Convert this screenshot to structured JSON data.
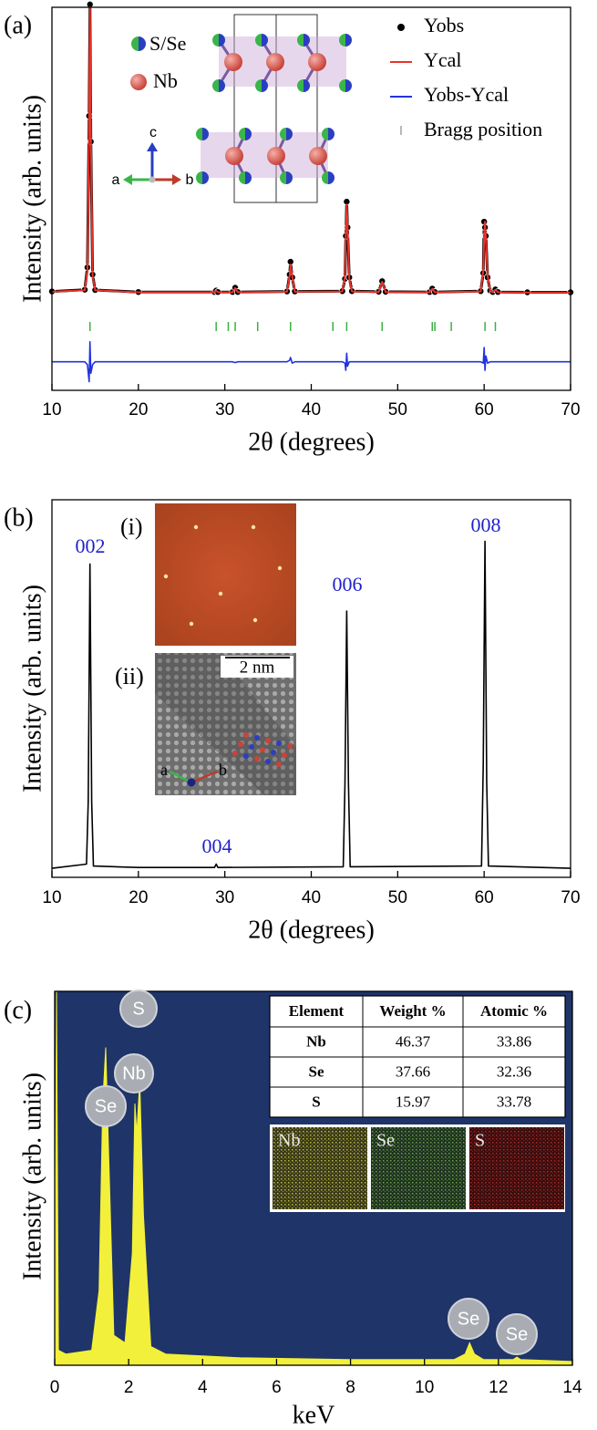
{
  "chart_data": [
    {
      "type": "line",
      "label": "(a)",
      "xlabel": "2θ (degrees)",
      "ylabel": "Intensity (arb. units)",
      "x": [
        10,
        13.8,
        14.1,
        14.3,
        14.4,
        14.5,
        14.7,
        15,
        20,
        28.8,
        29,
        29.2,
        30.9,
        31.2,
        31.5,
        37.2,
        37.5,
        37.6,
        37.8,
        38.1,
        43.6,
        43.9,
        44.0,
        44.1,
        44.2,
        44.4,
        44.7,
        47.8,
        48.2,
        48.6,
        53.7,
        54,
        54.3,
        59.6,
        59.9,
        60.0,
        60.1,
        60.2,
        60.4,
        60.7,
        61.0,
        61.3,
        61.6,
        65,
        70
      ],
      "series": [
        {
          "name": "Yobs",
          "color": "#000000",
          "marker": "circle",
          "values": [
            0.6,
            1.2,
            9,
            62,
            101,
            53,
            6.5,
            1.1,
            0.4,
            0.4,
            0.9,
            0.4,
            0.4,
            1.9,
            0.4,
            0.6,
            6.5,
            11,
            5.5,
            0.6,
            0.7,
            5,
            20,
            32,
            23,
            5.5,
            0.7,
            0.5,
            4.2,
            0.5,
            0.4,
            1.6,
            0.4,
            0.7,
            7,
            25,
            23,
            20,
            5.5,
            0.9,
            0.4,
            1.3,
            0.4,
            0.3,
            0.3
          ]
        },
        {
          "name": "Ycal",
          "color": "#e8332a",
          "values": [
            0.5,
            1,
            8,
            60,
            100,
            55,
            6,
            1,
            0.3,
            0.3,
            0.8,
            0.3,
            0.3,
            1.8,
            0.3,
            0.5,
            6,
            10,
            6,
            0.5,
            0.6,
            6,
            22,
            31,
            24,
            5,
            0.6,
            0.4,
            4,
            0.4,
            0.3,
            1.5,
            0.3,
            0.6,
            8,
            20,
            25,
            19,
            6,
            0.8,
            0.3,
            1.2,
            0.3,
            0.2,
            0.2
          ]
        },
        {
          "name": "Yobs-Ycal",
          "color": "#2233dd",
          "values": [
            -24,
            -24,
            -25,
            -31,
            -17,
            -28,
            -25,
            -24,
            -24,
            -24,
            -24,
            -24,
            -24,
            -24.3,
            -24,
            -24,
            -23.5,
            -22.5,
            -24.5,
            -24,
            -24,
            -24.5,
            -27,
            -21,
            -25.5,
            -24,
            -24,
            -24,
            -24,
            -24,
            -24,
            -24,
            -24,
            -24,
            -24.5,
            -19,
            -27,
            -22,
            -24.5,
            -24,
            -24,
            -24,
            -24,
            -24,
            -24
          ]
        }
      ],
      "bragg": {
        "name": "Bragg position",
        "color": "#3cb043",
        "x": [
          14.4,
          29.0,
          30.4,
          31.2,
          33.8,
          37.6,
          42.5,
          44.1,
          48.2,
          54.0,
          54.3,
          56.2,
          60.1,
          61.3
        ]
      },
      "legend": "upper right",
      "xlim": [
        10,
        70
      ],
      "ylim": [
        -34,
        100
      ],
      "xticks": [
        10,
        20,
        30,
        40,
        50,
        60,
        70
      ],
      "annotations": [
        "S/Se",
        "Nb",
        "c",
        "a",
        "b"
      ]
    },
    {
      "type": "line",
      "label": "(b)",
      "xlabel": "2θ (degrees)",
      "ylabel": "Intensity (arb. units)",
      "x": [
        10,
        14.0,
        14.2,
        14.4,
        14.6,
        14.8,
        20,
        28.8,
        29,
        29.2,
        43.7,
        43.9,
        44.1,
        44.3,
        44.5,
        59.7,
        59.9,
        60.1,
        60.2,
        60.3,
        60.5,
        70
      ],
      "series": [
        {
          "color": "#000000",
          "values": [
            2.4,
            3.5,
            20,
            83,
            20,
            3,
            2.6,
            2.6,
            3.5,
            2.6,
            2.8,
            25,
            70.5,
            25,
            2.8,
            3,
            30,
            89,
            55,
            25,
            3,
            2.4
          ]
        }
      ],
      "xlim": [
        10,
        70
      ],
      "ylim": [
        0,
        100
      ],
      "xticks": [
        10,
        20,
        30,
        40,
        50,
        60,
        70
      ],
      "annotations": [
        "002",
        "004",
        "006",
        "008",
        "(i)",
        "(ii)",
        "2 nm",
        "a",
        "b"
      ]
    },
    {
      "type": "area",
      "label": "(c)",
      "xlabel": "keV",
      "ylabel": "Intensity (arb. units)",
      "x": [
        0,
        0.05,
        0.1,
        0.3,
        1.0,
        1.2,
        1.3,
        1.38,
        1.45,
        1.6,
        1.9,
        2.1,
        2.17,
        2.22,
        2.3,
        2.4,
        2.6,
        3,
        5,
        8,
        10.8,
        11.1,
        11.22,
        11.35,
        11.6,
        12.4,
        12.5,
        12.6,
        14
      ],
      "series": [
        {
          "color": "#f2f03a",
          "values": [
            0,
            100,
            4,
            3,
            4,
            20,
            70,
            85,
            60,
            8,
            6,
            30,
            70,
            62,
            76,
            40,
            5,
            3,
            2,
            1.5,
            1.5,
            3,
            6,
            3,
            1.5,
            1.5,
            2.2,
            1.5,
            1
          ]
        }
      ],
      "background": "#1f3468",
      "xlim": [
        0,
        14
      ],
      "ylim": [
        0,
        100
      ],
      "xticks": [
        0,
        2,
        4,
        6,
        8,
        10,
        12,
        14
      ],
      "annotations": [
        "S",
        "Nb",
        "Se",
        "Se",
        "Se"
      ],
      "table": {
        "header": [
          "Element",
          "Weight %",
          "Atomic %"
        ],
        "rows": [
          [
            "Nb",
            46.37,
            33.86
          ],
          [
            "Se",
            37.66,
            32.36
          ],
          [
            "S",
            15.97,
            33.78
          ]
        ]
      },
      "maps": [
        "Nb",
        "Se",
        "S"
      ]
    }
  ]
}
